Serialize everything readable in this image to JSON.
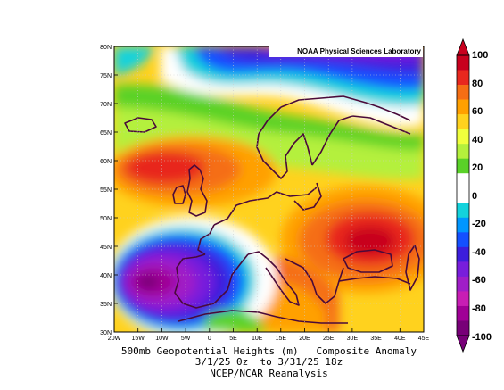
{
  "credit": "NOAA Physical Sciences Laboratory",
  "caption": {
    "line1": "500mb Geopotential Heights (m)   Composite Anomaly",
    "line2": "3/1/25 0z  to 3/31/25 18z",
    "line3": "NCEP/NCAR Reanalysis"
  },
  "map": {
    "lon_range": [
      -20,
      45
    ],
    "lat_range": [
      30,
      80
    ],
    "lon_ticks": [
      "20W",
      "15W",
      "10W",
      "5W",
      "0",
      "5E",
      "10E",
      "15E",
      "20E",
      "25E",
      "30E",
      "35E",
      "40E",
      "45E"
    ],
    "lat_ticks": [
      "80N",
      "75N",
      "70N",
      "65N",
      "60N",
      "55N",
      "50N",
      "45N",
      "40N",
      "35N",
      "30N"
    ],
    "grid": true
  },
  "colorbar": {
    "labels": [
      "100",
      "80",
      "60",
      "40",
      "20",
      "0",
      "-20",
      "-40",
      "-60",
      "-80",
      "-100"
    ],
    "colors": [
      "#c8001e",
      "#e8281e",
      "#f56e14",
      "#ffa000",
      "#ffd21e",
      "#f0ff3c",
      "#b4f03c",
      "#5ad228",
      "#ffffff",
      "#ffffff",
      "#14d2dc",
      "#0096ff",
      "#1450ff",
      "#3c1edc",
      "#781edc",
      "#a01ec8",
      "#c81eb4",
      "#a00096",
      "#780078"
    ]
  },
  "chart_data": {
    "type": "heatmap",
    "variable": "500mb Geopotential Heights (m) Composite Anomaly",
    "range": [
      -100,
      100
    ],
    "features": [
      {
        "feature": "negative anomaly centre",
        "lon": -13,
        "lat": 38,
        "value": -100
      },
      {
        "feature": "negative anomaly band",
        "lon": 5,
        "lat": 78,
        "value": -60
      },
      {
        "feature": "positive anomaly centre",
        "lon": -5,
        "lat": 58,
        "value": 80
      },
      {
        "feature": "positive anomaly centre",
        "lon": 35,
        "lat": 46,
        "value": 80
      }
    ]
  }
}
